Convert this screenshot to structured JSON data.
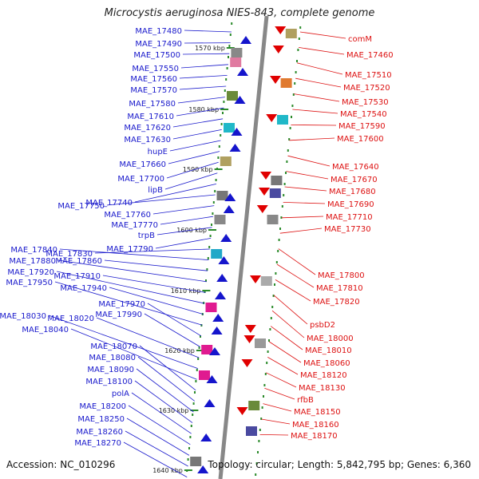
{
  "title": "Microcystis aeruginosa NIES-843, complete genome",
  "footer": {
    "accession": "Accession: NC_010296",
    "topology": "Topology: circular; Length: 5,842,795 bp; Genes: 6,360"
  },
  "colors": {
    "left_labels": "#1a1acc",
    "right_labels": "#dd1111",
    "axis": "#888888"
  },
  "kbp_markers": [
    "1570 kbp",
    "1580 kbp",
    "1590 kbp",
    "1600 kbp",
    "1610 kbp",
    "1620 kbp",
    "1630 kbp",
    "1640 kbp"
  ],
  "left_genes": [
    "MAE_17480",
    "MAE_17490",
    "MAE_17500",
    "MAE_17550",
    "MAE_17560",
    "MAE_17570",
    "MAE_17580",
    "MAE_17610",
    "MAE_17620",
    "MAE_17630",
    "hupE",
    "MAE_17660",
    "MAE_17700",
    "lipB",
    "MAE_17740",
    "MAE_17750",
    "MAE_17760",
    "MAE_17770",
    "trpB",
    "MAE_17790",
    "MAE_17830",
    "MAE_17840",
    "MAE_17860",
    "MAE_17880",
    "MAE_17910",
    "MAE_17920",
    "MAE_17940",
    "MAE_17950",
    "MAE_17970",
    "MAE_17990",
    "MAE_18020",
    "MAE_18030",
    "MAE_18040",
    "MAE_18070",
    "MAE_18080",
    "MAE_18090",
    "MAE_18100",
    "polA",
    "MAE_18200",
    "MAE_18250",
    "MAE_18260",
    "MAE_18270"
  ],
  "right_genes": [
    "comM",
    "MAE_17460",
    "MAE_17510",
    "MAE_17520",
    "MAE_17530",
    "MAE_17540",
    "MAE_17590",
    "MAE_17600",
    "MAE_17640",
    "MAE_17670",
    "MAE_17680",
    "MAE_17690",
    "MAE_17710",
    "MAE_17730",
    "MAE_17800",
    "MAE_17810",
    "MAE_17820",
    "psbD2",
    "MAE_18000",
    "MAE_18010",
    "MAE_18060",
    "MAE_18120",
    "MAE_18130",
    "rfbB",
    "MAE_18150",
    "MAE_18160",
    "MAE_18170"
  ]
}
